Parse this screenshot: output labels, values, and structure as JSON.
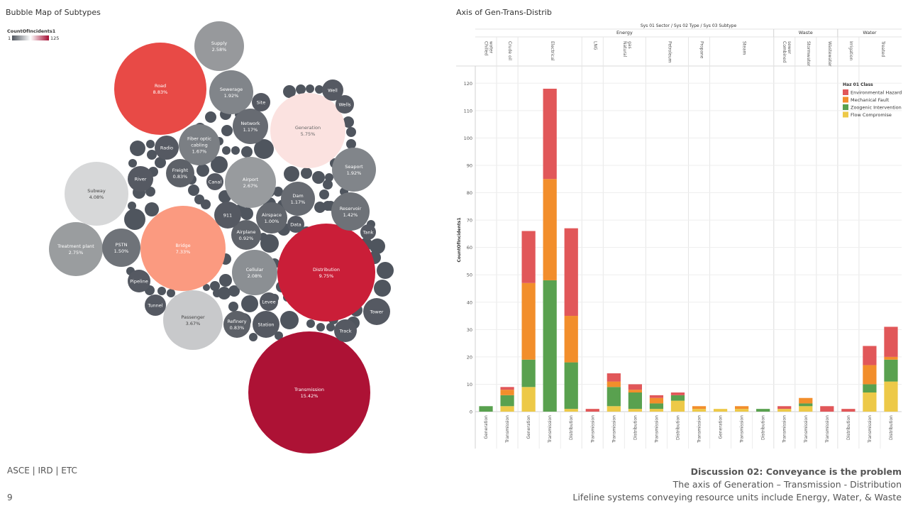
{
  "left_title": "Bubble Map of Subtypes",
  "right_title": "Axis of Gen-Trans-Distrib",
  "footer": {
    "left": "ASCE | IRD | ETC",
    "page": "9",
    "heading": "Discussion 02: Conveyance is the problem",
    "line1": "The axis of Generation – Transmission - Distribution",
    "line2": "Lifeline systems conveying resource units include Energy, Water, & Waste"
  },
  "chart_data": [
    {
      "type": "bubble",
      "title": "Bubble Map of Subtypes",
      "legend": {
        "title": "CountOfIncidents1",
        "min": "1",
        "max": "125",
        "colors": [
          "#4f555e",
          "#ffffff",
          "#a50f35"
        ]
      },
      "bubbles": [
        {
          "label": "Transmission",
          "pct": "15.42%",
          "color": "#ad1235"
        },
        {
          "label": "Distribution",
          "pct": "9.75%",
          "color": "#ca1e38"
        },
        {
          "label": "Road",
          "pct": "8.83%",
          "color": "#e84a46"
        },
        {
          "label": "Bridge",
          "pct": "7.33%",
          "color": "#fb9a80"
        },
        {
          "label": "Generation",
          "pct": "5.75%",
          "color": "#fbe2e0"
        },
        {
          "label": "Subway",
          "pct": "4.08%",
          "color": "#d7d8d9"
        },
        {
          "label": "Passenger",
          "pct": "3.67%",
          "color": "#c8c9cb"
        },
        {
          "label": "Treatment plant",
          "pct": "2.75%",
          "color": "#9a9d9f"
        },
        {
          "label": "Airport",
          "pct": "2.67%",
          "color": "#989b9e"
        },
        {
          "label": "Supply",
          "pct": "2.58%",
          "color": "#97999c"
        },
        {
          "label": "Cellular",
          "pct": "2.08%",
          "color": "#8b8f93"
        },
        {
          "label": "Sewerage",
          "pct": "1.92%",
          "color": "#81858a"
        },
        {
          "label": "Seaport",
          "pct": "1.92%",
          "color": "#81858a"
        },
        {
          "label": "Fiber optic cabling",
          "pct": "1.67%",
          "color": "#7b7f84"
        },
        {
          "label": "PSTN",
          "pct": "1.50%",
          "color": "#6f7379"
        },
        {
          "label": "Reservoir",
          "pct": "1.42%",
          "color": "#6e7278"
        },
        {
          "label": "Network",
          "pct": "1.17%",
          "color": "#676b72"
        },
        {
          "label": "Dam",
          "pct": "1.17%",
          "color": "#676b72"
        },
        {
          "label": "Airspace",
          "pct": "1.00%",
          "color": "#62666d"
        },
        {
          "label": "Airplane",
          "pct": "0.92%",
          "color": "#5f636a"
        },
        {
          "label": "Freight",
          "pct": "0.83%",
          "color": "#5d6168"
        },
        {
          "label": "Refinery",
          "pct": "0.83%",
          "color": "#5d6168"
        },
        {
          "label": "911",
          "pct": "",
          "color": "#555962"
        },
        {
          "label": "Levee",
          "pct": "",
          "color": "#555962"
        },
        {
          "label": "Station",
          "pct": "",
          "color": "#555962"
        },
        {
          "label": "River",
          "pct": "",
          "color": "#555962"
        },
        {
          "label": "Radio",
          "pct": "",
          "color": "#555962"
        },
        {
          "label": "Canal",
          "pct": "",
          "color": "#555962"
        },
        {
          "label": "Data",
          "pct": "",
          "color": "#555962"
        },
        {
          "label": "Site",
          "pct": "",
          "color": "#555962"
        },
        {
          "label": "Well",
          "pct": "",
          "color": "#555962"
        },
        {
          "label": "Wells",
          "pct": "",
          "color": "#555962"
        },
        {
          "label": "Tank",
          "pct": "",
          "color": "#555962"
        },
        {
          "label": "Tower",
          "pct": "",
          "color": "#555962"
        },
        {
          "label": "Track",
          "pct": "",
          "color": "#555962"
        },
        {
          "label": "Pipeline",
          "pct": "",
          "color": "#555962"
        },
        {
          "label": "Tunnel",
          "pct": "",
          "color": "#555962"
        }
      ],
      "small_bubble_color": "#4f555e"
    },
    {
      "type": "bar",
      "stacked": true,
      "title": "Axis of Gen-Trans-Distrib",
      "header": "Sys 01 Sector / Sys 02 Type / Sys 03 Subtype",
      "ylabel": "CountOfIncidents1",
      "ylim": [
        0,
        125
      ],
      "yticks": [
        0,
        10,
        20,
        30,
        40,
        50,
        60,
        70,
        80,
        90,
        100,
        110,
        120
      ],
      "grid": true,
      "legend": {
        "title": "Haz 01 Class",
        "position": "top-right",
        "items": [
          {
            "name": "Environmental Hazard",
            "color": "#e15759"
          },
          {
            "name": "Mechanical Fault",
            "color": "#f28e2b"
          },
          {
            "name": "Zoogenic Intervention",
            "color": "#59a14f"
          },
          {
            "name": "Flow Compromise",
            "color": "#edc948"
          }
        ]
      },
      "sectors": [
        {
          "name": "Energy",
          "types": 8
        },
        {
          "name": "Waste",
          "types": 3
        },
        {
          "name": "Water",
          "types": 2
        }
      ],
      "types": [
        {
          "name": "Chilled water",
          "subtypes": 1
        },
        {
          "name": "Crude oil",
          "subtypes": 1
        },
        {
          "name": "Electrical",
          "subtypes": 3
        },
        {
          "name": "LNG",
          "subtypes": 1
        },
        {
          "name": "Natural gas",
          "subtypes": 2
        },
        {
          "name": "Petroleum",
          "subtypes": 2
        },
        {
          "name": "Propane",
          "subtypes": 1
        },
        {
          "name": "Steam",
          "subtypes": 3
        },
        {
          "name": "Combined sewer",
          "subtypes": 1
        },
        {
          "name": "Stormwater",
          "subtypes": 1
        },
        {
          "name": "Wastewater",
          "subtypes": 1
        },
        {
          "name": "Irrigation",
          "subtypes": 1
        },
        {
          "name": "Treated",
          "subtypes": 2
        }
      ],
      "categories": [
        "Generation",
        "Transmission",
        "Generation",
        "Transmission",
        "Distribution",
        "Transmission",
        "Transmission",
        "Distribution",
        "Transmission",
        "Distribution",
        "Transmission",
        "Generation",
        "Transmission",
        "Distribution",
        "Transmission",
        "Transmission",
        "Transmission",
        "Distribution",
        "Transmission",
        "Distribution"
      ],
      "series": [
        {
          "name": "Flow Compromise",
          "values": [
            0,
            2,
            9,
            0,
            1,
            0,
            2,
            1,
            1,
            4,
            1,
            1,
            1,
            0,
            1,
            2,
            0,
            0,
            7,
            11
          ]
        },
        {
          "name": "Zoogenic Intervention",
          "values": [
            2,
            4,
            10,
            48,
            17,
            0,
            7,
            6,
            2,
            2,
            0,
            0,
            0,
            1,
            0,
            1,
            0,
            0,
            3,
            8
          ]
        },
        {
          "name": "Mechanical Fault",
          "values": [
            0,
            2,
            28,
            37,
            17,
            0,
            2,
            1,
            2,
            0,
            1,
            0,
            1,
            0,
            0,
            2,
            0,
            0,
            7,
            1
          ]
        },
        {
          "name": "Environmental Hazard",
          "values": [
            0,
            1,
            19,
            33,
            32,
            1,
            3,
            2,
            1,
            1,
            0,
            0,
            0,
            0,
            1,
            0,
            2,
            1,
            7,
            11
          ]
        }
      ]
    }
  ]
}
